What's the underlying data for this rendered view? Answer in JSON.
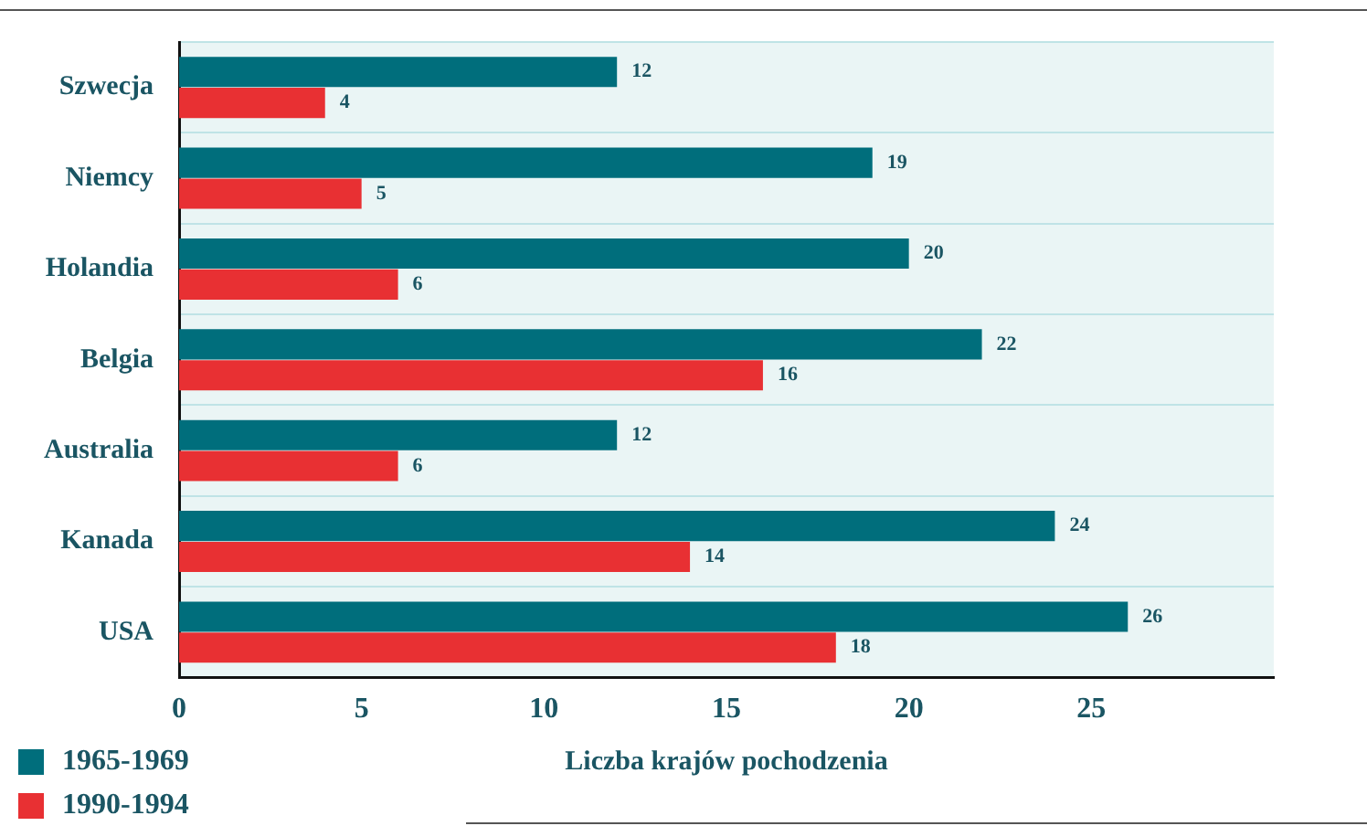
{
  "chart_data": {
    "type": "bar",
    "orientation": "horizontal",
    "xlabel": "Liczba krajów pochodzenia",
    "categories": [
      "Szwecja",
      "Niemcy",
      "Holandia",
      "Belgia",
      "Australia",
      "Kanada",
      "USA"
    ],
    "series": [
      {
        "name": "1965-1969",
        "color": "#006e7c",
        "values": [
          12,
          19,
          20,
          22,
          12,
          24,
          26
        ]
      },
      {
        "name": "1990-1994",
        "color": "#e83033",
        "values": [
          4,
          5,
          6,
          16,
          6,
          14,
          18
        ]
      }
    ],
    "xlim": [
      0,
      30
    ],
    "xticks": [
      0,
      5,
      10,
      15,
      20,
      25
    ],
    "grid": "y",
    "legend": "bottom left",
    "data_labels": true
  }
}
